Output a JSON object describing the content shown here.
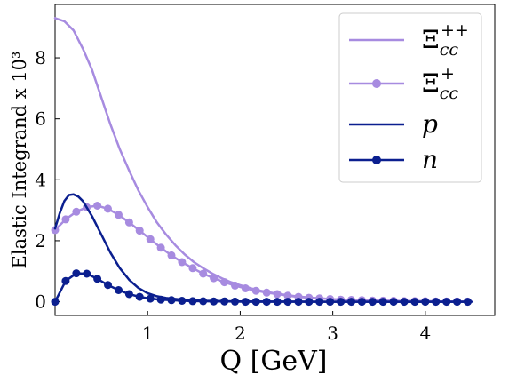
{
  "chart_data": {
    "type": "line",
    "xlabel": "Q [GeV]",
    "ylabel": "Elastic Integrand x 10³",
    "xlim": [
      0,
      4.75
    ],
    "ylim": [
      -0.45,
      9.75
    ],
    "xticks": [
      1,
      2,
      3,
      4
    ],
    "yticks": [
      0,
      2,
      4,
      6,
      8
    ],
    "grid": false,
    "legend_position": "top-right",
    "series": [
      {
        "name": "Ξcc++",
        "color": "#a78be0",
        "marker": "none",
        "x": [
          0,
          0.1,
          0.2,
          0.3,
          0.4,
          0.5,
          0.6,
          0.7,
          0.8,
          0.9,
          1.0,
          1.1,
          1.2,
          1.3,
          1.4,
          1.5,
          1.6,
          1.7,
          1.8,
          1.9,
          2.0,
          2.2,
          2.4,
          2.6,
          2.8,
          3.0,
          3.2,
          3.4,
          3.6,
          3.8,
          4.0,
          4.2,
          4.5
        ],
        "y": [
          9.3,
          9.2,
          8.9,
          8.3,
          7.6,
          6.7,
          5.8,
          5.0,
          4.3,
          3.65,
          3.1,
          2.6,
          2.2,
          1.85,
          1.55,
          1.3,
          1.1,
          0.92,
          0.77,
          0.64,
          0.54,
          0.37,
          0.26,
          0.18,
          0.12,
          0.08,
          0.055,
          0.04,
          0.03,
          0.02,
          0.015,
          0.01,
          0.005
        ]
      },
      {
        "name": "Ξcc+",
        "color": "#a78be0",
        "marker": "circle",
        "x": [
          0,
          0.114,
          0.229,
          0.343,
          0.457,
          0.571,
          0.686,
          0.8,
          0.914,
          1.029,
          1.143,
          1.257,
          1.371,
          1.486,
          1.6,
          1.714,
          1.829,
          1.943,
          2.057,
          2.171,
          2.286,
          2.4,
          2.514,
          2.629,
          2.743,
          2.857,
          2.971,
          3.086,
          3.2,
          3.314,
          3.429,
          3.543,
          3.657,
          3.771,
          3.886,
          4.0,
          4.114,
          4.229,
          4.343,
          4.457
        ],
        "y": [
          2.35,
          2.7,
          2.95,
          3.1,
          3.15,
          3.05,
          2.85,
          2.6,
          2.33,
          2.05,
          1.77,
          1.52,
          1.3,
          1.1,
          0.92,
          0.77,
          0.64,
          0.53,
          0.44,
          0.36,
          0.3,
          0.25,
          0.2,
          0.16,
          0.13,
          0.11,
          0.09,
          0.07,
          0.06,
          0.05,
          0.04,
          0.035,
          0.03,
          0.02,
          0.02,
          0.015,
          0.01,
          0.01,
          0.01,
          0.005
        ]
      },
      {
        "name": "p",
        "color": "#0b1f8f",
        "marker": "none",
        "x": [
          0,
          0.05,
          0.1,
          0.15,
          0.2,
          0.25,
          0.3,
          0.4,
          0.5,
          0.6,
          0.7,
          0.8,
          0.9,
          1.0,
          1.1,
          1.2,
          1.4,
          1.6,
          1.8,
          2.0,
          2.5,
          3.0,
          3.5,
          4.0,
          4.5
        ],
        "y": [
          2.4,
          2.9,
          3.3,
          3.5,
          3.52,
          3.45,
          3.3,
          2.8,
          2.2,
          1.6,
          1.1,
          0.72,
          0.45,
          0.28,
          0.18,
          0.12,
          0.06,
          0.03,
          0.02,
          0.01,
          0.005,
          0,
          0,
          0,
          0
        ]
      },
      {
        "name": "n",
        "color": "#0b1f8f",
        "marker": "circle",
        "x": [
          0,
          0.114,
          0.229,
          0.343,
          0.457,
          0.571,
          0.686,
          0.8,
          0.914,
          1.029,
          1.143,
          1.257,
          1.371,
          1.486,
          1.6,
          1.714,
          1.829,
          1.943,
          2.057,
          2.171,
          2.286,
          2.4,
          2.514,
          2.629,
          2.743,
          2.857,
          2.971,
          3.086,
          3.2,
          3.314,
          3.429,
          3.543,
          3.657,
          3.771,
          3.886,
          4.0,
          4.114,
          4.229,
          4.343,
          4.457
        ],
        "y": [
          0,
          0.68,
          0.93,
          0.92,
          0.75,
          0.55,
          0.38,
          0.25,
          0.16,
          0.1,
          0.07,
          0.05,
          0.03,
          0.02,
          0.015,
          0.01,
          0.01,
          0.005,
          0,
          0,
          0,
          0,
          0,
          0,
          0,
          0,
          0,
          0,
          0,
          0,
          0,
          0,
          0,
          0,
          0,
          0,
          0,
          0,
          0,
          0
        ]
      }
    ]
  }
}
